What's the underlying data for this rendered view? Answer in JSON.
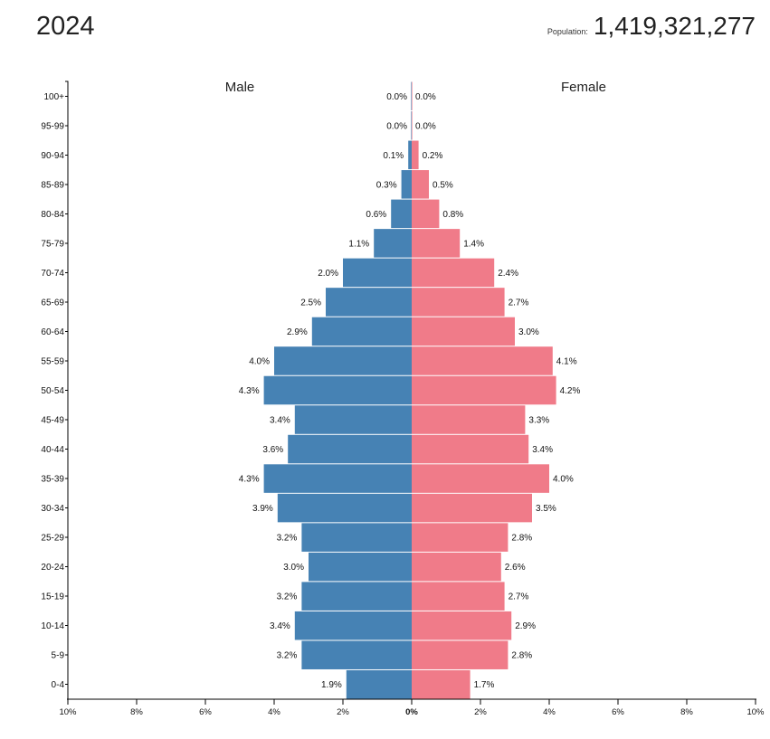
{
  "header": {
    "year": "2024",
    "population_label": "Population:",
    "population_value": "1,419,321,277"
  },
  "chart_data": {
    "type": "bar",
    "orientation": "horizontal-pyramid",
    "categories": [
      "100+",
      "95-99",
      "90-94",
      "85-89",
      "80-84",
      "75-79",
      "70-74",
      "65-69",
      "60-64",
      "55-59",
      "50-54",
      "45-49",
      "40-44",
      "35-39",
      "30-34",
      "25-29",
      "20-24",
      "15-19",
      "10-14",
      "5-9",
      "0-4"
    ],
    "series": [
      {
        "name": "Male",
        "side": "left",
        "color": "#4682b4",
        "values": [
          0.0,
          0.0,
          0.1,
          0.3,
          0.6,
          1.1,
          2.0,
          2.5,
          2.9,
          4.0,
          4.3,
          3.4,
          3.6,
          4.3,
          3.9,
          3.2,
          3.0,
          3.2,
          3.4,
          3.2,
          1.9
        ]
      },
      {
        "name": "Female",
        "side": "right",
        "color": "#f07b89",
        "values": [
          0.0,
          0.0,
          0.2,
          0.5,
          0.8,
          1.4,
          2.4,
          2.7,
          3.0,
          4.1,
          4.2,
          3.3,
          3.4,
          4.0,
          3.5,
          2.8,
          2.6,
          2.7,
          2.9,
          2.8,
          1.7
        ]
      }
    ],
    "unit": "%",
    "xlim": [
      -10,
      10
    ],
    "x_ticks": [
      -10,
      -8,
      -6,
      -4,
      -2,
      0,
      2,
      4,
      6,
      8,
      10
    ],
    "x_tick_labels": [
      "10%",
      "8%",
      "6%",
      "4%",
      "2%",
      "0%",
      "2%",
      "4%",
      "6%",
      "8%",
      "10%"
    ],
    "xlabel": "",
    "ylabel": "",
    "grid": false,
    "legend": "top"
  }
}
